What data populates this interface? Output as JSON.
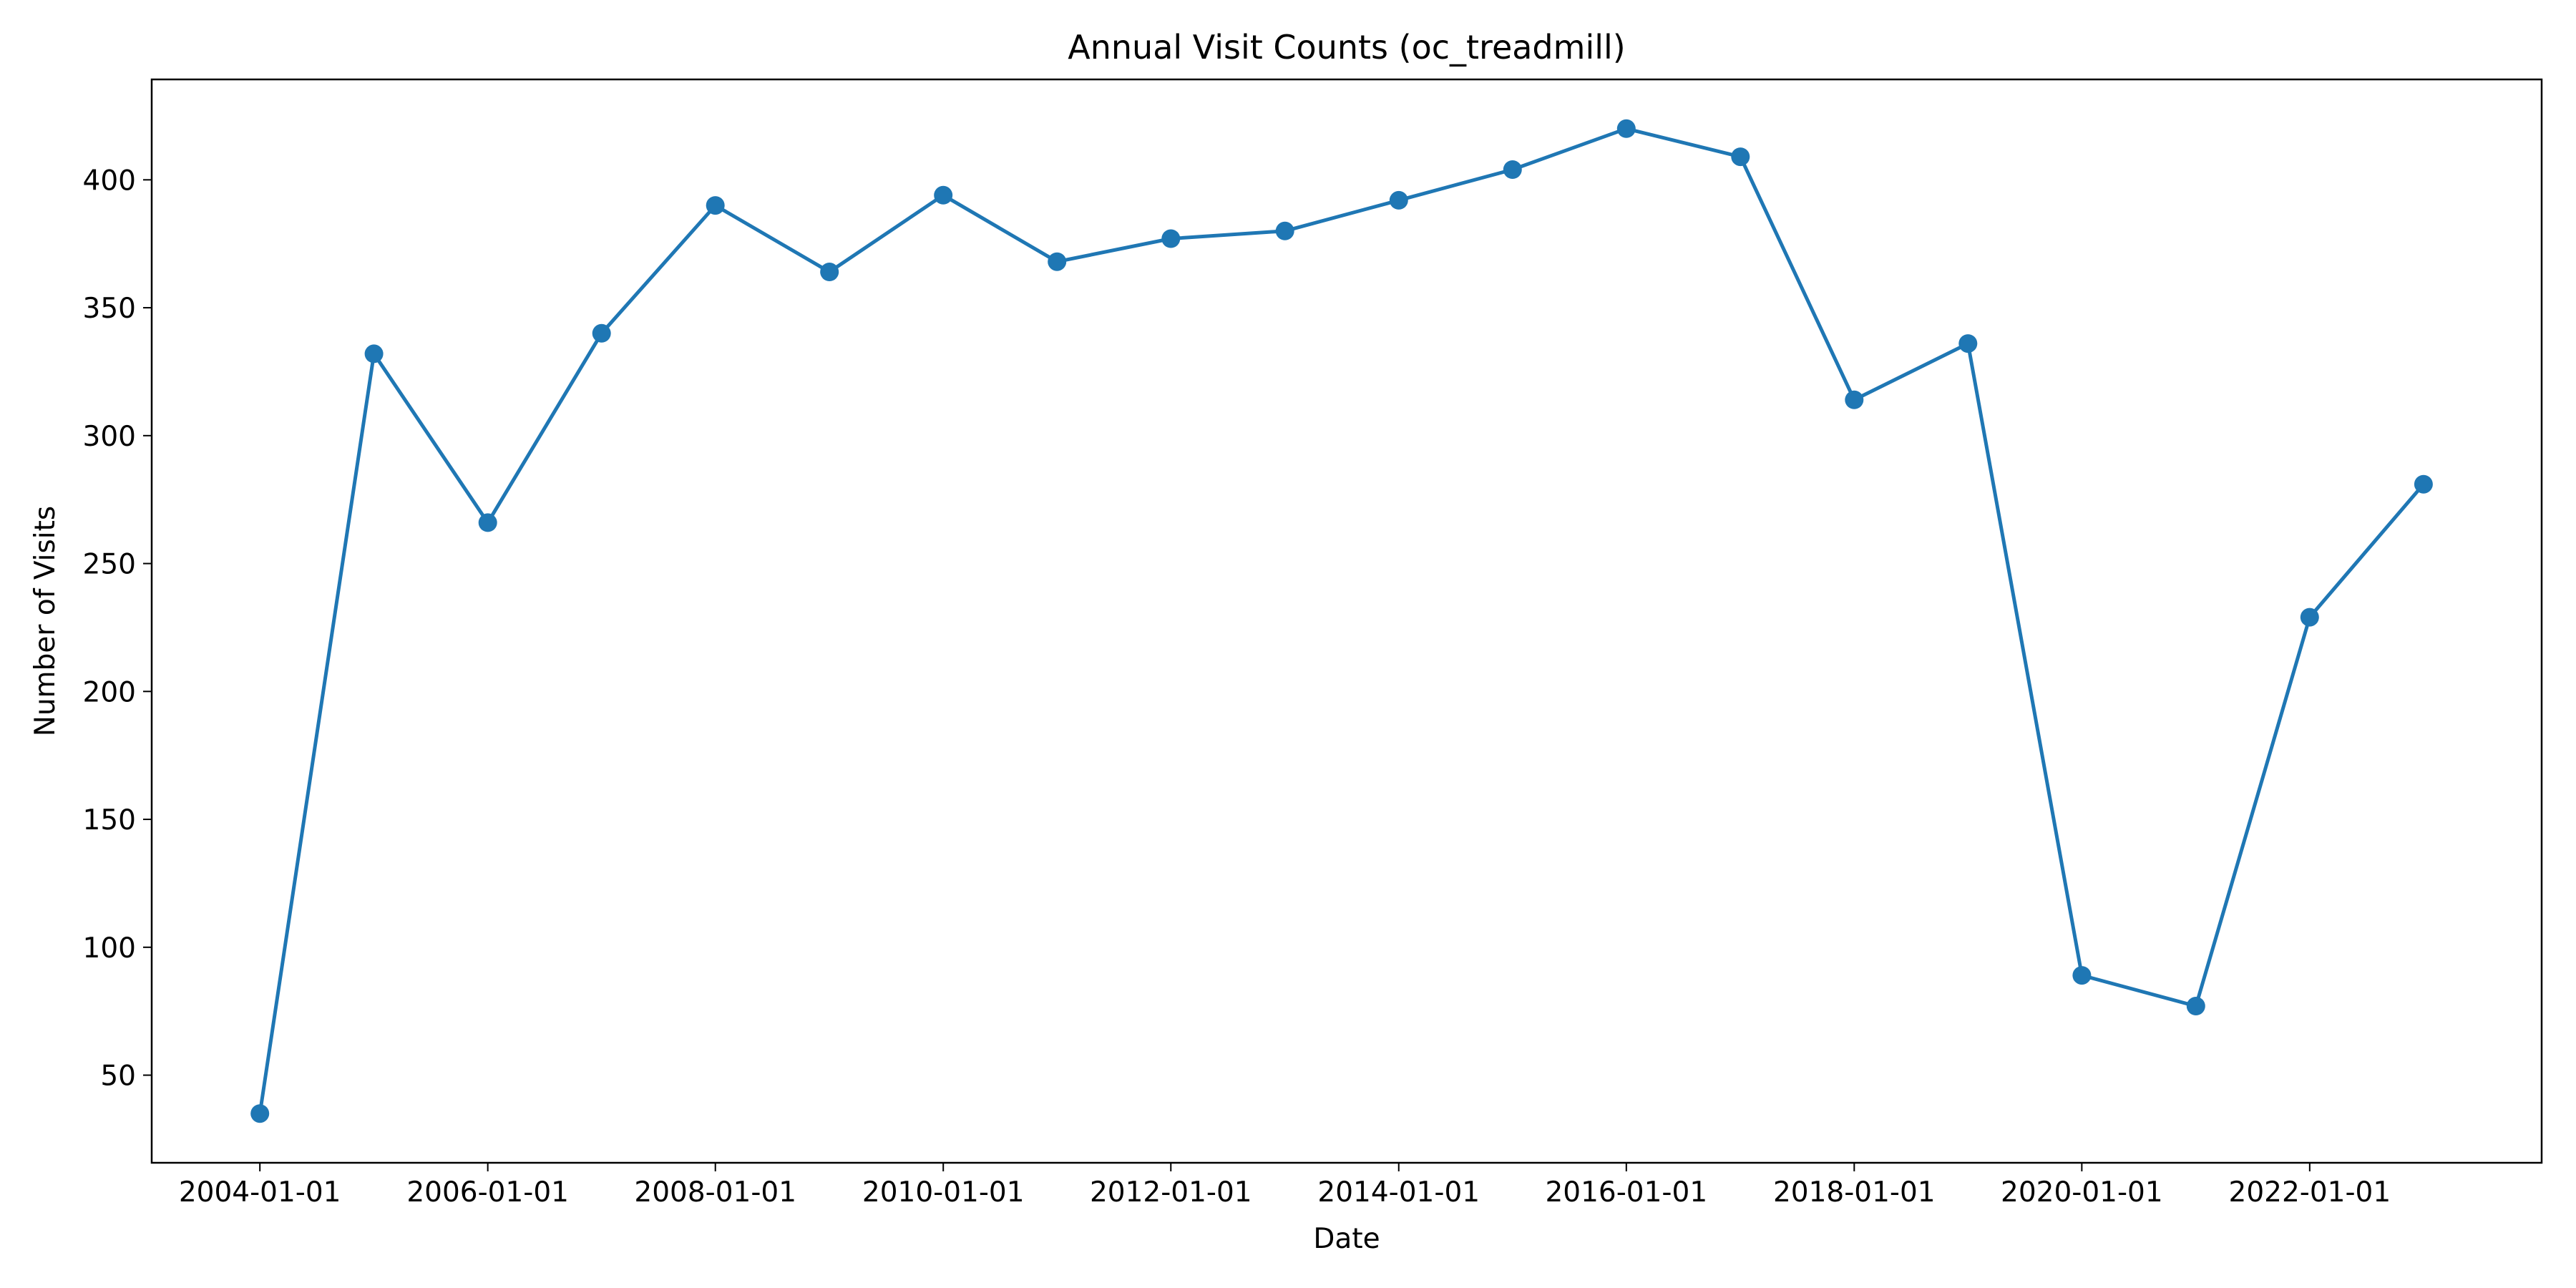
{
  "chart_data": {
    "type": "line",
    "title": "Annual Visit Counts (oc_treadmill)",
    "xlabel": "Date",
    "ylabel": "Number of Visits",
    "x": [
      "2004-01-01",
      "2005-01-01",
      "2006-01-01",
      "2007-01-01",
      "2008-01-01",
      "2009-01-01",
      "2010-01-01",
      "2011-01-01",
      "2012-01-01",
      "2013-01-01",
      "2014-01-01",
      "2015-01-01",
      "2016-01-01",
      "2017-01-01",
      "2018-01-01",
      "2019-01-01",
      "2020-01-01",
      "2021-01-01",
      "2022-01-01",
      "2023-01-01"
    ],
    "series": [
      {
        "values": [
          35,
          332,
          266,
          340,
          390,
          364,
          394,
          368,
          377,
          380,
          392,
          404,
          420,
          409,
          314,
          336,
          89,
          77,
          229,
          281
        ],
        "color": "#1f77b4",
        "marker": "circle"
      }
    ],
    "xticks": [
      "2004-01-01",
      "2006-01-01",
      "2008-01-01",
      "2010-01-01",
      "2012-01-01",
      "2014-01-01",
      "2016-01-01",
      "2018-01-01",
      "2020-01-01",
      "2022-01-01"
    ],
    "yticks": [
      50,
      100,
      150,
      200,
      250,
      300,
      350,
      400
    ],
    "xlim": [
      "2003-01-19",
      "2024-01-15"
    ],
    "ylim": [
      15.75,
      439.25
    ],
    "grid": false,
    "legend": "none"
  }
}
